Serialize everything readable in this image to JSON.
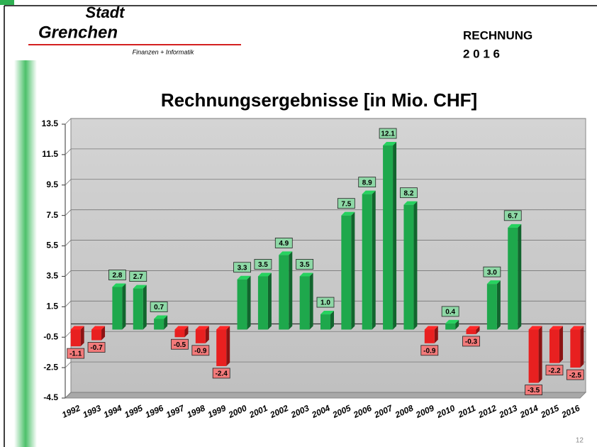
{
  "header": {
    "logo_top": "Stadt",
    "logo_main": "Grenchen",
    "logo_sub": "Finanzen + Informatik",
    "doc_title": "RECHNUNG",
    "doc_year": "2 0 1 6",
    "page_number": "12"
  },
  "chart_data": {
    "type": "bar",
    "title": "Rechnungsergebnisse  [in Mio. CHF]",
    "categories": [
      "1992",
      "1993",
      "1994",
      "1995",
      "1996",
      "1997",
      "1998",
      "1999",
      "2000",
      "2001",
      "2002",
      "2003",
      "2004",
      "2005",
      "2006",
      "2007",
      "2008",
      "2009",
      "2010",
      "2011",
      "2012",
      "2013",
      "2014",
      "2015",
      "2016"
    ],
    "values": [
      -1.1,
      -0.7,
      2.8,
      2.7,
      0.7,
      -0.5,
      -0.9,
      -2.4,
      3.3,
      3.5,
      4.9,
      3.5,
      1.0,
      7.5,
      8.9,
      12.1,
      8.2,
      -0.9,
      0.4,
      -0.3,
      3.0,
      6.7,
      -3.5,
      -2.2,
      -2.5
    ],
    "value_labels": [
      "-1.1",
      "-0.7",
      "2.8",
      "2.7",
      "0.7",
      "-0.5",
      "-0.9",
      "-2.4",
      "3.3",
      "3.5",
      "4.9",
      "3.5",
      "1.0",
      "7.5",
      "8.9",
      "12.1",
      "8.2",
      "-0.9",
      "0.4",
      "-0.3",
      "3.0",
      "6.7",
      "-3.5",
      "-2.2",
      "-2.5"
    ],
    "positive_color": "#1ea84c",
    "negative_color": "#e82020",
    "ylim": [
      -4.5,
      13.5
    ],
    "yticks": [
      13.5,
      11.5,
      9.5,
      7.5,
      5.5,
      3.5,
      1.5,
      -0.5,
      -2.5,
      -4.5
    ],
    "grid": true
  }
}
